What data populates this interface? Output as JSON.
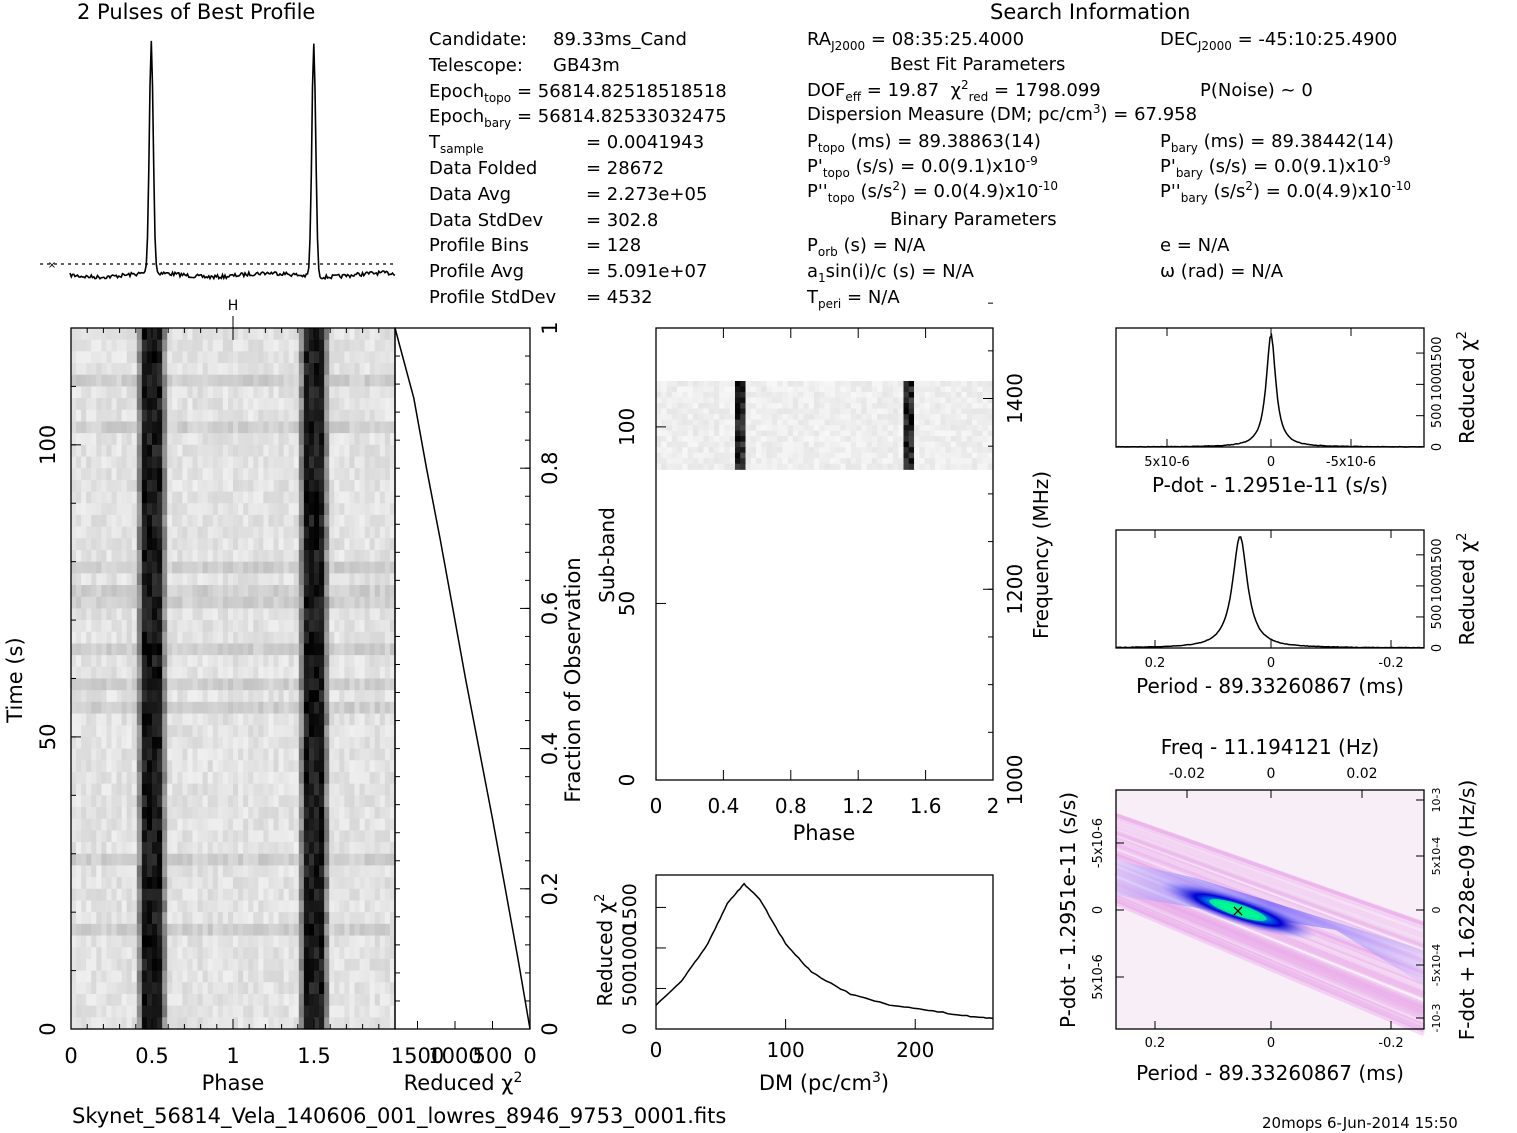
{
  "titles": {
    "profile": "2 Pulses of Best Profile",
    "search": "Search Information",
    "best_fit": "Best Fit Parameters",
    "binary": "Binary Parameters",
    "filename": "Skynet_56814_Vela_140606_001_lowres_8946_9753_0001.fits",
    "footer": "20mops   6-Jun-2014 15:50"
  },
  "info_left": [
    {
      "label": "Candidate:",
      "value": "89.33ms_Cand"
    },
    {
      "label": "Telescope:",
      "value": "GB43m"
    },
    {
      "label": "Epoch",
      "sub": "topo",
      "value": "= 56814.82518518518"
    },
    {
      "label": "Epoch",
      "sub": "bary",
      "value": "= 56814.82533032475"
    },
    {
      "label": "T",
      "sub": "sample",
      "value": "=   0.0041943"
    },
    {
      "label": "Data Folded",
      "value": "=   28672"
    },
    {
      "label": "Data Avg",
      "value": "=   2.273e+05"
    },
    {
      "label": "Data StdDev",
      "value": "=   302.8"
    },
    {
      "label": "Profile Bins",
      "value": "=   128"
    },
    {
      "label": "Profile Avg",
      "value": "=   5.091e+07"
    },
    {
      "label": "Profile StdDev",
      "value": "=   4532"
    }
  ],
  "search": {
    "ra_label": "RA",
    "ra_sub": "J2000",
    "ra_value": "= 08:35:25.4000",
    "dec_label": "DEC",
    "dec_sub": "J2000",
    "dec_value": "= -45:10:25.4900",
    "dof_label": "DOF",
    "dof_sub": "eff",
    "dof_value": "= 19.87",
    "chi_label": "χ",
    "chi_sup": "2",
    "chi_sub": "red",
    "chi_value": "= 1798.099",
    "pnoise": "P(Noise) ~ 0",
    "dm_text": "Dispersion Measure (DM; pc/cm",
    "dm_sup": "3",
    "dm_value": ") = 67.958",
    "ptopo_label": "P",
    "ptopo_sub": "topo",
    "ptopo_value": "(ms) =  89.38863(14)",
    "pbary_label": "P",
    "pbary_sub": "bary",
    "pbary_value": "(ms) =  89.38442(14)",
    "pdtopo_label": "P'",
    "pdtopo_sub": "topo",
    "pdtopo_value": "(s/s) = 0.0(9.1)x10",
    "pdtopo_exp": "-9",
    "pdbary_label": "P'",
    "pdbary_sub": "bary",
    "pdbary_value": "(s/s) = 0.0(9.1)x10",
    "pdbary_exp": "-9",
    "pddtopo_label": "P''",
    "pddtopo_sub": "topo",
    "pddtopo_value": "(s/s",
    "pddtopo_sup": "2",
    "pddtopo_tail": ") = 0.0(4.9)x10",
    "pddtopo_exp": "-10",
    "pddbary_label": "P''",
    "pddbary_sub": "bary",
    "pddbary_value": "(s/s",
    "pddbary_sup": "2",
    "pddbary_tail": ") = 0.0(4.9)x10",
    "pddbary_exp": "-10",
    "porb_label": "P",
    "porb_sub": "orb",
    "porb_value": "(s) = N/A",
    "asini_label": "a",
    "asini_sub": "1",
    "asini_value": "sin(i)/c (s) = N/A",
    "tperi_label": "T",
    "tperi_sub": "peri",
    "tperi_value": "= N/A",
    "ecc": "e = N/A",
    "omega": "ω (rad) = N/A"
  },
  "chart_data": [
    {
      "type": "line",
      "name": "profile",
      "title": "2 Pulses of Best Profile",
      "x_range": [
        0,
        2
      ],
      "peaks": [
        0.5,
        1.5
      ],
      "baseline_marker": "dotted line at profile average"
    },
    {
      "type": "heatmap",
      "name": "time-phase",
      "xlabel": "Phase",
      "ylabel": "Time (s)",
      "xlim": [
        0,
        2
      ],
      "ylim": [
        0,
        120
      ],
      "x_ticks": [
        "0",
        "0.5",
        "1",
        "1.5"
      ],
      "y_ticks": [
        "0",
        "50",
        "100"
      ],
      "pulse_phases": [
        0.5,
        1.5
      ]
    },
    {
      "type": "line",
      "name": "reduced-chi2-vs-time",
      "xlabel": "Reduced χ2",
      "right_label": "Fraction of Observation",
      "x_ticks": [
        "1500",
        "1000",
        "500",
        "0"
      ],
      "y_ticks": [
        "0",
        "0.2",
        "0.4",
        "0.6",
        "0.8",
        "1"
      ],
      "y": [
        0,
        0.1,
        0.2,
        0.3,
        0.4,
        0.5,
        0.6,
        0.7,
        0.8,
        0.9,
        0.96,
        1.0
      ],
      "x": [
        0,
        160,
        330,
        500,
        680,
        860,
        1030,
        1200,
        1380,
        1550,
        1700,
        1800
      ]
    },
    {
      "type": "heatmap",
      "name": "subband-phase",
      "xlabel": "Phase",
      "ylabel": "Sub-band",
      "right_label": "Frequency (MHz)",
      "xlim": [
        0,
        2
      ],
      "ylim": [
        0,
        128
      ],
      "x_ticks": [
        "0",
        "0.4",
        "0.8",
        "1.2",
        "1.6",
        "2"
      ],
      "y_ticks": [
        "0",
        "50",
        "100"
      ],
      "freq_ticks": [
        "1000",
        "1200",
        "1400"
      ],
      "active_subbands": [
        90,
        113
      ],
      "pulse_phases": [
        0.5,
        1.5
      ]
    },
    {
      "type": "line",
      "name": "chi2-vs-dm",
      "xlabel": "DM (pc/cm3)",
      "ylabel": "Reduced χ2",
      "xlim": [
        0,
        260
      ],
      "ylim": [
        0,
        1900
      ],
      "x_ticks": [
        "0",
        "100",
        "200"
      ],
      "y_ticks": [
        "0",
        "500",
        "1000",
        "1500"
      ],
      "x": [
        0,
        20,
        40,
        55,
        68,
        80,
        100,
        120,
        150,
        180,
        210,
        240,
        260
      ],
      "y": [
        290,
        600,
        1050,
        1550,
        1790,
        1600,
        1050,
        700,
        430,
        300,
        230,
        160,
        130
      ]
    },
    {
      "type": "line",
      "name": "chi2-vs-pdot",
      "xlabel": "P-dot - 1.2951e-11 (s/s)",
      "ylabel": "Reduced χ2",
      "x_ticks": [
        "5x10-6",
        "0",
        "-5x10-6"
      ],
      "y_ticks": [
        "0",
        "500",
        "1000",
        "1500"
      ],
      "x": [
        1.1e-05,
        6e-06,
        2e-06,
        6e-07,
        0,
        -6e-07,
        -2e-06,
        -6e-06,
        -1.1e-05
      ],
      "y": [
        0,
        20,
        120,
        500,
        1800,
        500,
        80,
        10,
        0
      ]
    },
    {
      "type": "line",
      "name": "chi2-vs-period",
      "xlabel": "Period - 89.33260867 (ms)",
      "ylabel": "Reduced χ2",
      "x_ticks": [
        "0.2",
        "0",
        "-0.2"
      ],
      "y_ticks": [
        "0",
        "500",
        "1000",
        "1500"
      ],
      "x": [
        0.28,
        0.15,
        0.09,
        0.06,
        0.05,
        0.04,
        0.01,
        -0.05,
        -0.2,
        -0.28
      ],
      "y": [
        0,
        30,
        200,
        800,
        1800,
        800,
        150,
        20,
        0,
        0
      ]
    },
    {
      "type": "heatmap",
      "name": "pdot-period",
      "title": "Freq - 11.194121 (Hz)",
      "xlabel": "Period - 89.33260867 (ms)",
      "ylabel": "P-dot - 1.2951e-11 (s/s)",
      "right_label": "F-dot + 1.6228e-09 (Hz/s)",
      "x_ticks": [
        "0.2",
        "0",
        "-0.2"
      ],
      "top_ticks": [
        "-0.02",
        "0",
        "0.02"
      ],
      "y_ticks": [
        "-5x10-6",
        "0",
        "5x10-6"
      ],
      "right_ticks": [
        "10-3",
        "5x10-4",
        "0",
        "-5x10-4",
        "-10-3"
      ],
      "best": [
        0.05,
        0
      ]
    }
  ]
}
